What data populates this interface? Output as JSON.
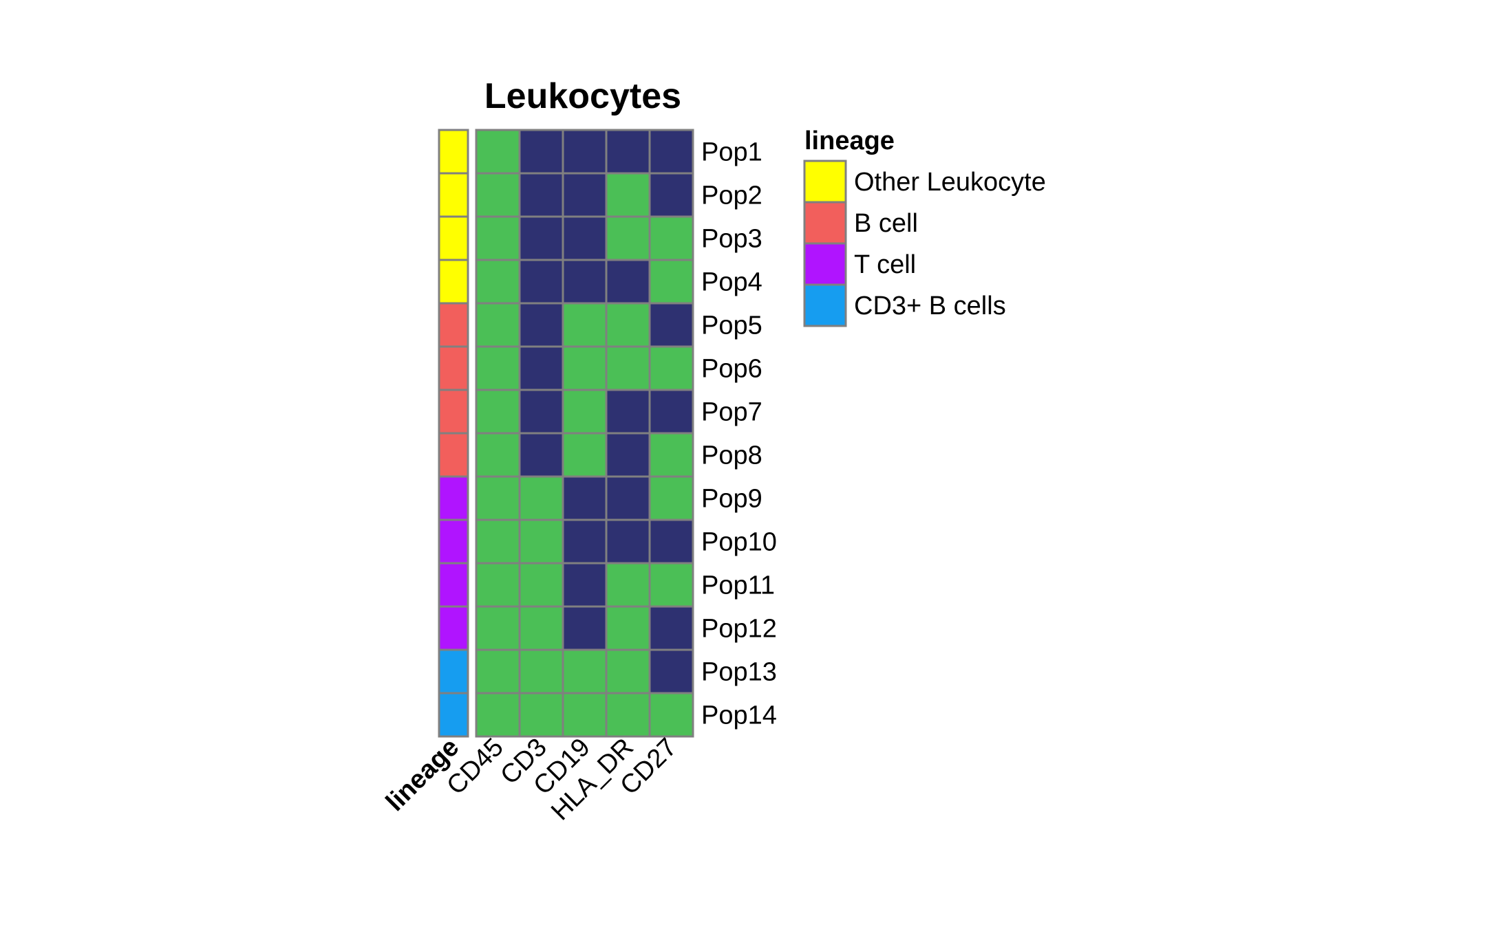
{
  "chart_data": {
    "type": "heatmap",
    "title": "Leukocytes",
    "columns": [
      "CD45",
      "CD3",
      "CD19",
      "HLA_DR",
      "CD27"
    ],
    "rows": [
      "Pop1",
      "Pop2",
      "Pop3",
      "Pop4",
      "Pop5",
      "Pop6",
      "Pop7",
      "Pop8",
      "Pop9",
      "Pop10",
      "Pop11",
      "Pop12",
      "Pop13",
      "Pop14"
    ],
    "values": [
      [
        1,
        0,
        0,
        0,
        0
      ],
      [
        1,
        0,
        0,
        1,
        0
      ],
      [
        1,
        0,
        0,
        1,
        1
      ],
      [
        1,
        0,
        0,
        0,
        1
      ],
      [
        1,
        0,
        1,
        1,
        0
      ],
      [
        1,
        0,
        1,
        1,
        1
      ],
      [
        1,
        0,
        1,
        0,
        0
      ],
      [
        1,
        0,
        1,
        0,
        1
      ],
      [
        1,
        1,
        0,
        0,
        1
      ],
      [
        1,
        1,
        0,
        0,
        0
      ],
      [
        1,
        1,
        0,
        1,
        1
      ],
      [
        1,
        1,
        0,
        1,
        0
      ],
      [
        1,
        1,
        1,
        1,
        0
      ],
      [
        1,
        1,
        1,
        1,
        1
      ]
    ],
    "value_colors": {
      "0": "#2E3171",
      "1": "#4BBF56"
    },
    "annotation": {
      "name": "lineage",
      "per_row": [
        "Other Leukocyte",
        "Other Leukocyte",
        "Other Leukocyte",
        "Other Leukocyte",
        "B cell",
        "B cell",
        "B cell",
        "B cell",
        "T cell",
        "T cell",
        "T cell",
        "T cell",
        "CD3+ B cells",
        "CD3+ B cells"
      ]
    },
    "legend": {
      "title": "lineage",
      "position": "right",
      "items": [
        {
          "label": "Other Leukocyte",
          "color": "#FFFF00"
        },
        {
          "label": "B cell",
          "color": "#F25F5C"
        },
        {
          "label": "T cell",
          "color": "#B014FF"
        },
        {
          "label": "CD3+ B cells",
          "color": "#169DF0"
        }
      ]
    },
    "border_color": "#808080"
  }
}
